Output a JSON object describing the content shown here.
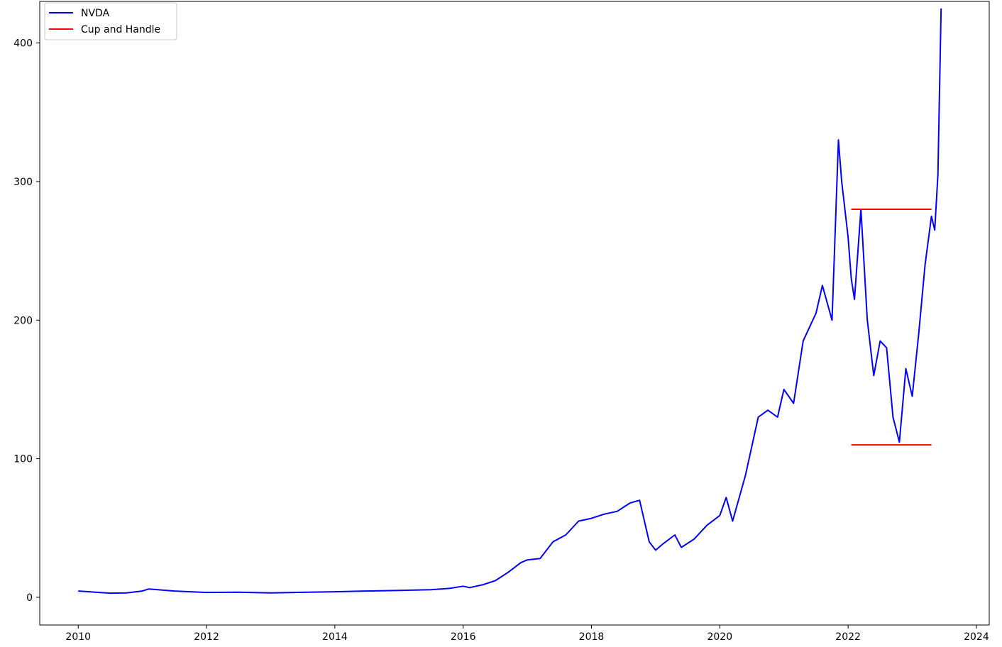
{
  "chart_data": {
    "type": "line",
    "title": "",
    "xlabel": "",
    "ylabel": "",
    "xlim": [
      2009.4,
      2024.2
    ],
    "ylim": [
      -20,
      430
    ],
    "x_ticks": [
      2010,
      2012,
      2014,
      2016,
      2018,
      2020,
      2022,
      2024
    ],
    "x_tick_labels": [
      "2010",
      "2012",
      "2014",
      "2016",
      "2018",
      "2020",
      "2022",
      "2024"
    ],
    "y_ticks": [
      0,
      100,
      200,
      300,
      400
    ],
    "y_tick_labels": [
      "0",
      "100",
      "200",
      "300",
      "400"
    ],
    "grid": false,
    "legend_position": "top-left",
    "legend": [
      {
        "label": "NVDA",
        "color": "#0000ff"
      },
      {
        "label": "Cup and Handle",
        "color": "#ff0000"
      }
    ],
    "series": [
      {
        "name": "NVDA",
        "color": "#0000ff",
        "x": [
          2010.0,
          2010.5,
          2010.75,
          2011.0,
          2011.1,
          2011.5,
          2012.0,
          2012.5,
          2013.0,
          2013.5,
          2014.0,
          2014.5,
          2015.0,
          2015.5,
          2015.8,
          2016.0,
          2016.1,
          2016.3,
          2016.5,
          2016.7,
          2016.9,
          2017.0,
          2017.2,
          2017.4,
          2017.6,
          2017.8,
          2018.0,
          2018.2,
          2018.4,
          2018.6,
          2018.75,
          2018.9,
          2019.0,
          2019.1,
          2019.3,
          2019.4,
          2019.6,
          2019.8,
          2020.0,
          2020.1,
          2020.2,
          2020.4,
          2020.6,
          2020.75,
          2020.9,
          2021.0,
          2021.15,
          2021.3,
          2021.5,
          2021.6,
          2021.75,
          2021.85,
          2021.9,
          2022.0,
          2022.05,
          2022.1,
          2022.2,
          2022.3,
          2022.4,
          2022.5,
          2022.6,
          2022.7,
          2022.8,
          2022.9,
          2023.0,
          2023.1,
          2023.2,
          2023.3,
          2023.35,
          2023.4,
          2023.45
        ],
        "values": [
          4.5,
          3.0,
          3.2,
          4.5,
          6.0,
          4.5,
          3.5,
          3.7,
          3.2,
          3.6,
          4.0,
          4.5,
          5.0,
          5.5,
          6.5,
          8.0,
          7.0,
          9.0,
          12.0,
          18.0,
          25.0,
          27.0,
          28.0,
          40.0,
          45.0,
          55.0,
          57.0,
          60.0,
          62.0,
          68.0,
          70.0,
          40.0,
          34.0,
          38.0,
          45.0,
          36.0,
          42.0,
          52.0,
          59.0,
          72.0,
          55.0,
          88.0,
          130.0,
          135.0,
          130.0,
          150.0,
          140.0,
          185.0,
          205.0,
          225.0,
          200.0,
          330.0,
          300.0,
          260.0,
          230.0,
          215.0,
          280.0,
          200.0,
          160.0,
          185.0,
          180.0,
          130.0,
          112.0,
          165.0,
          145.0,
          190.0,
          240.0,
          275.0,
          265.0,
          305.0,
          425.0
        ]
      },
      {
        "name": "Cup and Handle",
        "color": "#ff0000",
        "segments": [
          {
            "x": [
              2022.05,
              2023.3
            ],
            "values": [
              280,
              280
            ]
          },
          {
            "x": [
              2022.05,
              2023.3
            ],
            "values": [
              110,
              110
            ]
          }
        ]
      }
    ]
  }
}
